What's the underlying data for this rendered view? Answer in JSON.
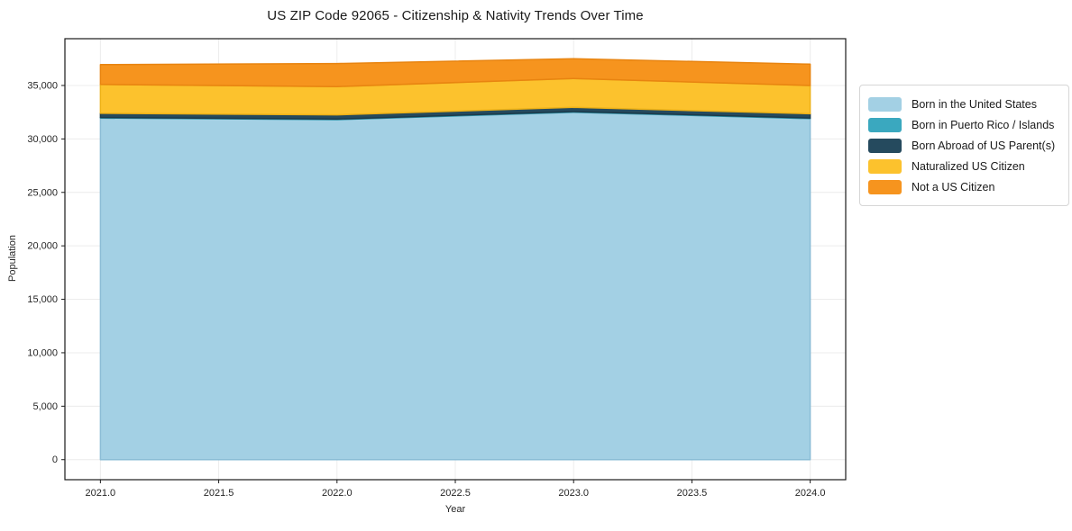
{
  "figure": {
    "background": "#ffffff"
  },
  "chart_data": {
    "type": "area",
    "stacked": true,
    "title": "US ZIP Code 92065 - Citizenship & Nativity Trends Over Time",
    "xlabel": "Year",
    "ylabel": "Population",
    "x": [
      2021,
      2022,
      2023,
      2024
    ],
    "series": [
      {
        "name": "Born in the United States",
        "color": "#a3d0e4",
        "edge": "#8bbdd6",
        "values": [
          31950,
          31800,
          32500,
          31900
        ]
      },
      {
        "name": "Born in Puerto Rico / Islands",
        "color": "#3aa8bf",
        "edge": "#2f93a8",
        "values": [
          60,
          60,
          60,
          60
        ]
      },
      {
        "name": "Born Abroad of US Parent(s)",
        "color": "#254a5e",
        "edge": "#1c3a4a",
        "values": [
          390,
          390,
          390,
          390
        ]
      },
      {
        "name": "Naturalized US Citizen",
        "color": "#fcc22d",
        "edge": "#edb117",
        "values": [
          2700,
          2650,
          2700,
          2650
        ]
      },
      {
        "name": "Not a US Citizen",
        "color": "#f6941e",
        "edge": "#e88410",
        "values": [
          1850,
          2150,
          1850,
          1990
        ]
      }
    ],
    "x_ticks": {
      "values": [
        2021,
        2021.5,
        2022,
        2022.5,
        2023,
        2023.5,
        2024
      ],
      "labels": [
        "2021.0",
        "2021.5",
        "2022.0",
        "2022.5",
        "2023.0",
        "2023.5",
        "2024.0"
      ]
    },
    "y_ticks": {
      "values": [
        0,
        5000,
        10000,
        15000,
        20000,
        25000,
        30000,
        35000
      ],
      "labels": [
        "0",
        "5,000",
        "10,000",
        "15,000",
        "20,000",
        "25,000",
        "30,000",
        "35,000"
      ]
    },
    "xlim": [
      2020.85,
      2024.15
    ],
    "ylim": [
      -1875,
      39375
    ],
    "grid": true,
    "legend_position": "right"
  },
  "style": {
    "grid_color": "#ececec",
    "spine_color": "#1a1a1a",
    "tick_color": "#1a1a1a",
    "tick_label_color": "#262626"
  }
}
